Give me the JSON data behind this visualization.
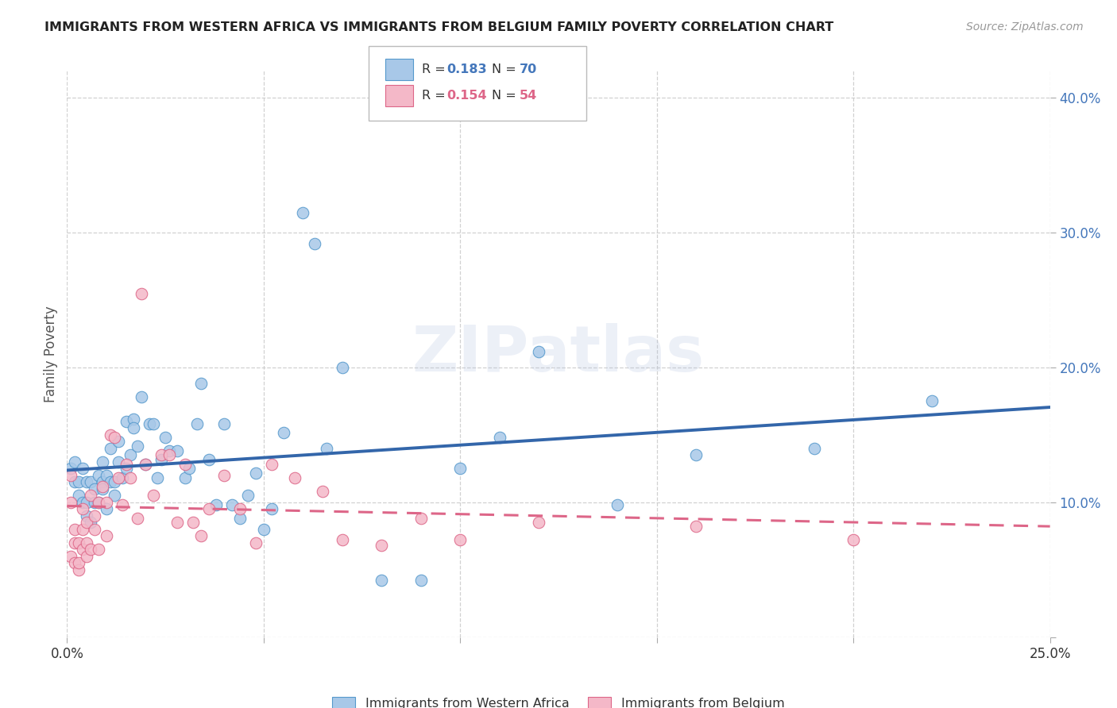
{
  "title": "IMMIGRANTS FROM WESTERN AFRICA VS IMMIGRANTS FROM BELGIUM FAMILY POVERTY CORRELATION CHART",
  "source": "Source: ZipAtlas.com",
  "ylabel": "Family Poverty",
  "xlim": [
    0,
    0.25
  ],
  "ylim": [
    0.0,
    0.42
  ],
  "xticks": [
    0.0,
    0.05,
    0.1,
    0.15,
    0.2,
    0.25
  ],
  "xtick_labels": [
    "0.0%",
    "",
    "",
    "",
    "",
    "25.0%"
  ],
  "yticks": [
    0.0,
    0.1,
    0.2,
    0.3,
    0.4
  ],
  "ytick_labels_right": [
    "",
    "10.0%",
    "20.0%",
    "30.0%",
    "40.0%"
  ],
  "R_blue": 0.183,
  "N_blue": 70,
  "R_pink": 0.154,
  "N_pink": 54,
  "legend_label_blue": "Immigrants from Western Africa",
  "legend_label_pink": "Immigrants from Belgium",
  "blue_color": "#a8c8e8",
  "pink_color": "#f4b8c8",
  "blue_edge_color": "#5599cc",
  "pink_edge_color": "#dd6688",
  "blue_line_color": "#3366aa",
  "pink_line_color": "#dd6688",
  "watermark": "ZIPatlas",
  "blue_x": [
    0.001,
    0.002,
    0.002,
    0.003,
    0.003,
    0.004,
    0.004,
    0.005,
    0.005,
    0.005,
    0.006,
    0.006,
    0.007,
    0.007,
    0.008,
    0.008,
    0.009,
    0.009,
    0.009,
    0.01,
    0.01,
    0.011,
    0.011,
    0.012,
    0.012,
    0.013,
    0.013,
    0.014,
    0.015,
    0.015,
    0.016,
    0.017,
    0.017,
    0.018,
    0.019,
    0.02,
    0.021,
    0.022,
    0.023,
    0.024,
    0.025,
    0.026,
    0.028,
    0.03,
    0.031,
    0.033,
    0.034,
    0.036,
    0.038,
    0.04,
    0.042,
    0.044,
    0.046,
    0.048,
    0.05,
    0.052,
    0.055,
    0.06,
    0.063,
    0.066,
    0.07,
    0.08,
    0.09,
    0.1,
    0.11,
    0.12,
    0.14,
    0.16,
    0.19,
    0.22
  ],
  "blue_y": [
    0.125,
    0.13,
    0.115,
    0.115,
    0.105,
    0.1,
    0.125,
    0.1,
    0.09,
    0.115,
    0.085,
    0.115,
    0.1,
    0.11,
    0.12,
    0.1,
    0.13,
    0.115,
    0.11,
    0.12,
    0.095,
    0.14,
    0.115,
    0.115,
    0.105,
    0.13,
    0.145,
    0.118,
    0.16,
    0.125,
    0.135,
    0.162,
    0.155,
    0.142,
    0.178,
    0.128,
    0.158,
    0.158,
    0.118,
    0.132,
    0.148,
    0.138,
    0.138,
    0.118,
    0.125,
    0.158,
    0.188,
    0.132,
    0.098,
    0.158,
    0.098,
    0.088,
    0.105,
    0.122,
    0.08,
    0.095,
    0.152,
    0.315,
    0.292,
    0.14,
    0.2,
    0.042,
    0.042,
    0.125,
    0.148,
    0.212,
    0.098,
    0.135,
    0.14,
    0.175
  ],
  "pink_x": [
    0.001,
    0.001,
    0.001,
    0.002,
    0.002,
    0.002,
    0.003,
    0.003,
    0.003,
    0.004,
    0.004,
    0.004,
    0.005,
    0.005,
    0.005,
    0.006,
    0.006,
    0.007,
    0.007,
    0.008,
    0.008,
    0.009,
    0.01,
    0.01,
    0.011,
    0.012,
    0.013,
    0.014,
    0.015,
    0.016,
    0.018,
    0.019,
    0.02,
    0.022,
    0.024,
    0.026,
    0.028,
    0.03,
    0.032,
    0.034,
    0.036,
    0.04,
    0.044,
    0.048,
    0.052,
    0.058,
    0.065,
    0.07,
    0.08,
    0.09,
    0.1,
    0.12,
    0.16,
    0.2
  ],
  "pink_y": [
    0.12,
    0.1,
    0.06,
    0.055,
    0.08,
    0.07,
    0.05,
    0.07,
    0.055,
    0.065,
    0.08,
    0.095,
    0.07,
    0.085,
    0.06,
    0.065,
    0.105,
    0.08,
    0.09,
    0.065,
    0.1,
    0.112,
    0.1,
    0.075,
    0.15,
    0.148,
    0.118,
    0.098,
    0.128,
    0.118,
    0.088,
    0.255,
    0.128,
    0.105,
    0.135,
    0.135,
    0.085,
    0.128,
    0.085,
    0.075,
    0.095,
    0.12,
    0.095,
    0.07,
    0.128,
    0.118,
    0.108,
    0.072,
    0.068,
    0.088,
    0.072,
    0.085,
    0.082,
    0.072
  ]
}
